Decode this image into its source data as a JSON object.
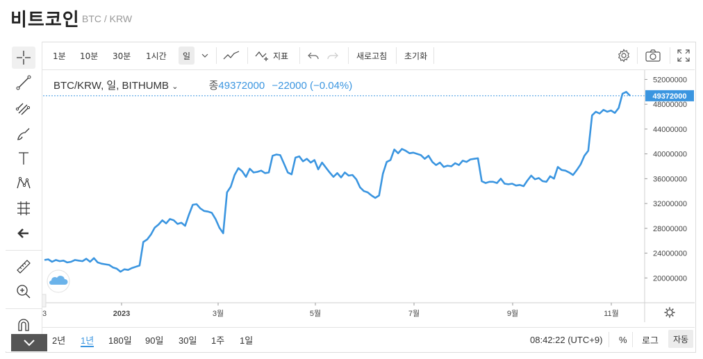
{
  "page": {
    "title": "비트코인",
    "subtitle": "BTC / KRW"
  },
  "toolbar": {
    "intervals": [
      "1분",
      "10분",
      "30분",
      "1시간",
      "일"
    ],
    "selected_interval": "일",
    "indicator_label": "지표",
    "refresh_label": "새로고침",
    "reset_label": "초기화"
  },
  "legend": {
    "symbol": "BTC/KRW, 일, BITHUMB",
    "close_label": "종",
    "close_value": "49372000",
    "change": "−22000 (−0.04%)"
  },
  "bottom": {
    "ranges": [
      "2년",
      "1년",
      "180일",
      "90일",
      "30일",
      "1주",
      "1일"
    ],
    "selected_range": "1년",
    "time": "08:42:22 (UTC+9)",
    "percent_label": "%",
    "log_label": "로그",
    "auto_label": "자동"
  },
  "colors": {
    "line": "#3a95e0",
    "badge": "#3a95e0",
    "grid": "#e3e3e3"
  },
  "chart_data": {
    "type": "line",
    "x_tick_labels": [
      "3",
      "2023",
      "3월",
      "5월",
      "7월",
      "9월",
      "11월"
    ],
    "y_tick_labels": [
      "20000000",
      "24000000",
      "28000000",
      "32000000",
      "36000000",
      "40000000",
      "44000000",
      "48000000",
      "52000000"
    ],
    "ylim": [
      16000000,
      53500000
    ],
    "last_price_label": "49372000",
    "series": [
      {
        "values": [
          22900000,
          23000000,
          22600000,
          22900000,
          22700000,
          22800000,
          22500000,
          22600000,
          22900000,
          22800000,
          22700000,
          23100000,
          22600000,
          23200000,
          22500000,
          22300000,
          22200000,
          22100000,
          21700000,
          21500000,
          21000000,
          21400000,
          21300000,
          21600000,
          21800000,
          22000000,
          25800000,
          26200000,
          27000000,
          28100000,
          28600000,
          29300000,
          28800000,
          29500000,
          29300000,
          28700000,
          28900000,
          28400000,
          30200000,
          31800000,
          31900000,
          31200000,
          30800000,
          30700000,
          30500000,
          29500000,
          28100000,
          27200000,
          33800000,
          34700000,
          36600000,
          37700000,
          37200000,
          36300000,
          37600000,
          37000000,
          37100000,
          37300000,
          36900000,
          37000000,
          39700000,
          39900000,
          39800000,
          38400000,
          37000000,
          36700000,
          39400000,
          39600000,
          38800000,
          39200000,
          38600000,
          39000000,
          37500000,
          38600000,
          37800000,
          37000000,
          36300000,
          36900000,
          36200000,
          37000000,
          36500000,
          36600000,
          35900000,
          34600000,
          34000000,
          33800000,
          33300000,
          32900000,
          33300000,
          36800000,
          38700000,
          39000000,
          40700000,
          40100000,
          40800000,
          40500000,
          40100000,
          40200000,
          40000000,
          39800000,
          39200000,
          39700000,
          38700000,
          38200000,
          38600000,
          37900000,
          38100000,
          38000000,
          38500000,
          38200000,
          38900000,
          38700000,
          39100000,
          39200000,
          39300000,
          35600000,
          35300000,
          35500000,
          35500000,
          35300000,
          36000000,
          35200000,
          35100000,
          35200000,
          34900000,
          35000000,
          34800000,
          35700000,
          36500000,
          35900000,
          36100000,
          35600000,
          35500000,
          36400000,
          36000000,
          37900000,
          37400000,
          37300000,
          37000000,
          36600000,
          37400000,
          38300000,
          39700000,
          40500000,
          46200000,
          46800000,
          46500000,
          47100000,
          46800000,
          47000000,
          46600000,
          47400000,
          49700000,
          50000000,
          49372000
        ]
      }
    ]
  }
}
